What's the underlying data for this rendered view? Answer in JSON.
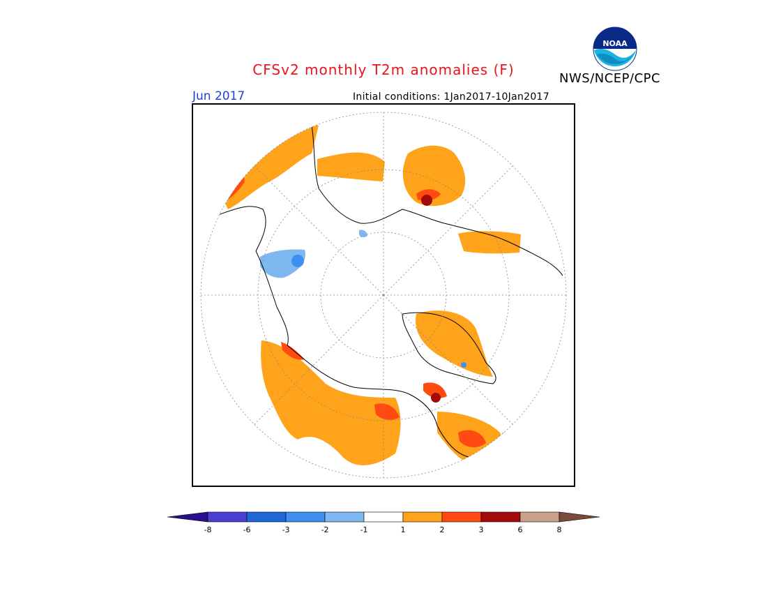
{
  "header": {
    "title": "CFSv2 monthly T2m anomalies (F)",
    "month": "Jun 2017",
    "initial_conditions": "Initial conditions: 1Jan2017-10Jan2017",
    "agency": "NWS/NCEP/CPC",
    "logo_text": "NOAA"
  },
  "colorbar": {
    "labels": [
      "-8",
      "-6",
      "-3",
      "-2",
      "-1",
      "1",
      "2",
      "3",
      "6",
      "8"
    ],
    "colors": [
      "#2a0f8f",
      "#4b3fcf",
      "#1f67d8",
      "#3f8ff0",
      "#7fb8f0",
      "#ffffff",
      "#ffa31a",
      "#ff4a12",
      "#a30b0b",
      "#c9a08a",
      "#7a4a3a"
    ]
  },
  "colors": {
    "title": "#e8141c",
    "month": "#1f3fd8",
    "orange": "#ffa31a",
    "red": "#ff4a12",
    "darkred": "#a30b0b",
    "lightblue": "#7fb8f0",
    "blue": "#3f8ff0"
  }
}
